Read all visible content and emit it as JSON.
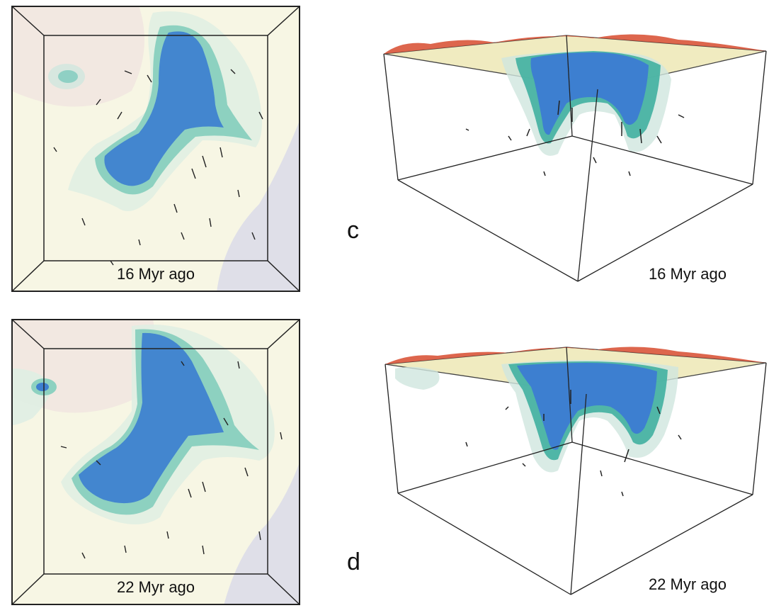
{
  "panels": {
    "a": {
      "time_label": "16 Myr ago"
    },
    "b": {
      "time_label": "22 Myr ago"
    },
    "c": {
      "letter": "c",
      "time_label": "16 Myr ago"
    },
    "d": {
      "letter": "d",
      "time_label": "22 Myr ago"
    }
  },
  "colors": {
    "background": "#f7f6e4",
    "slab_core": "#3d7fd0",
    "slab_mid": "#49b3a3",
    "slab_outer": "#bfe0d0",
    "surface_hot": "#d9553a",
    "surface_warm": "#e6d99a",
    "box_line": "#222222"
  }
}
